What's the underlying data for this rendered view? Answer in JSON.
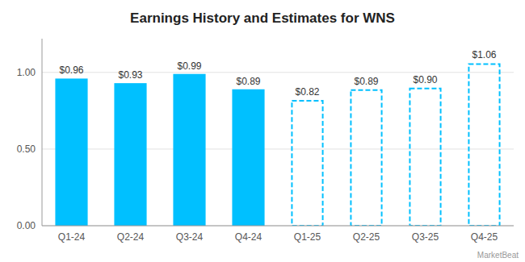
{
  "chart_data": {
    "type": "bar",
    "title": "Earnings History and Estimates for WNS",
    "categories": [
      "Q1-24",
      "Q2-24",
      "Q3-24",
      "Q4-24",
      "Q1-25",
      "Q2-25",
      "Q3-25",
      "Q4-25"
    ],
    "series": [
      {
        "color": "#00c0ff",
        "line_style": "solid",
        "values": [
          0.96,
          0.93,
          0.99,
          0.89,
          null,
          null,
          null,
          null
        ],
        "value_labels": [
          "$0.96",
          "$0.93",
          "$0.99",
          "$0.89",
          null,
          null,
          null,
          null
        ]
      },
      {
        "color": "#00c0ff",
        "line_style": "dashed",
        "values": [
          null,
          null,
          null,
          null,
          0.82,
          0.89,
          0.9,
          1.06
        ],
        "value_labels": [
          null,
          null,
          null,
          null,
          "$0.82",
          "$0.89",
          "$0.90",
          "$1.06"
        ]
      }
    ],
    "ylim": [
      0,
      1.22
    ],
    "yticks": [
      {
        "value": 0.0,
        "label": "0.00"
      },
      {
        "value": 0.5,
        "label": "0.50"
      },
      {
        "value": 1.0,
        "label": "1.00"
      }
    ],
    "grid": true,
    "annotations": [
      "MarketBeat"
    ]
  }
}
